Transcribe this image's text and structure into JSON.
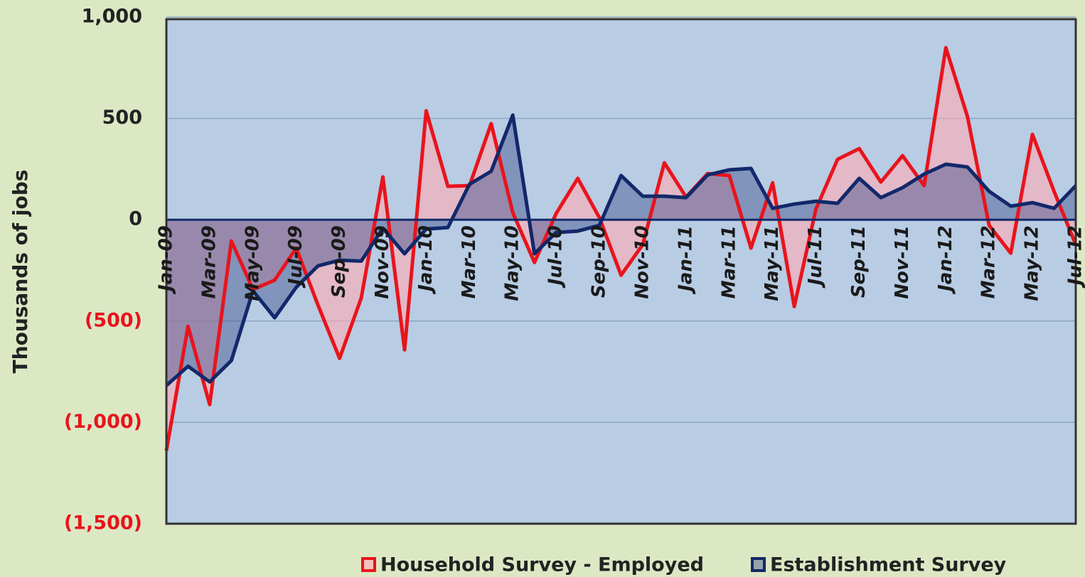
{
  "chart_data": {
    "type": "area",
    "y_axis_label": "Thousands of jobs",
    "categories": [
      "Jan-09",
      null,
      "Mar-09",
      null,
      "May-09",
      null,
      "Jul-09",
      null,
      "Sep-09",
      null,
      "Nov-09",
      null,
      "Jan-10",
      null,
      "Mar-10",
      null,
      "May-10",
      null,
      "Jul-10",
      null,
      "Sep-10",
      null,
      "Nov-10",
      null,
      "Jan-11",
      null,
      "Mar-11",
      null,
      "May-11",
      null,
      "Jul-11",
      null,
      "Sep-11",
      null,
      "Nov-11",
      null,
      "Jan-12",
      null,
      "Mar-12",
      null,
      "May-12",
      null,
      "Jul-12"
    ],
    "series": [
      {
        "name": "Household Survey - Employed",
        "color": "#e8141c",
        "fill": "rgba(255,170,180,0.6)",
        "values": [
          -1140,
          -526,
          -912,
          -105,
          -344,
          -298,
          -140,
          -421,
          -684,
          -386,
          211,
          -642,
          537,
          165,
          168,
          474,
          35,
          -211,
          30,
          204,
          10,
          -274,
          -123,
          281,
          112,
          228,
          218,
          -140,
          182,
          -428,
          53,
          298,
          351,
          186,
          316,
          168,
          849,
          509,
          -28,
          -165,
          421,
          140,
          -123
        ]
      },
      {
        "name": "Establishment Survey",
        "color": "#12286a",
        "fill": "rgba(60,80,140,0.45)",
        "values": [
          -818,
          -723,
          -800,
          -695,
          -351,
          -484,
          -333,
          -228,
          -200,
          -204,
          -42,
          -168,
          -46,
          -39,
          175,
          239,
          516,
          -168,
          -63,
          -56,
          -28,
          218,
          116,
          116,
          109,
          221,
          246,
          253,
          56,
          77,
          91,
          81,
          204,
          109,
          158,
          225,
          274,
          260,
          140,
          67,
          84,
          56,
          168
        ]
      }
    ],
    "ylim": [
      -1500,
      1000
    ],
    "yticks": [
      {
        "value": 1000,
        "label": "1,000"
      },
      500,
      0,
      {
        "value": -500,
        "label": "(500)"
      },
      {
        "value": -1000,
        "label": "(1,000)"
      },
      {
        "value": -1500,
        "label": "(1,500)"
      }
    ],
    "grid": true,
    "negative_label_color": "#e8141c",
    "legend": "bottom"
  }
}
